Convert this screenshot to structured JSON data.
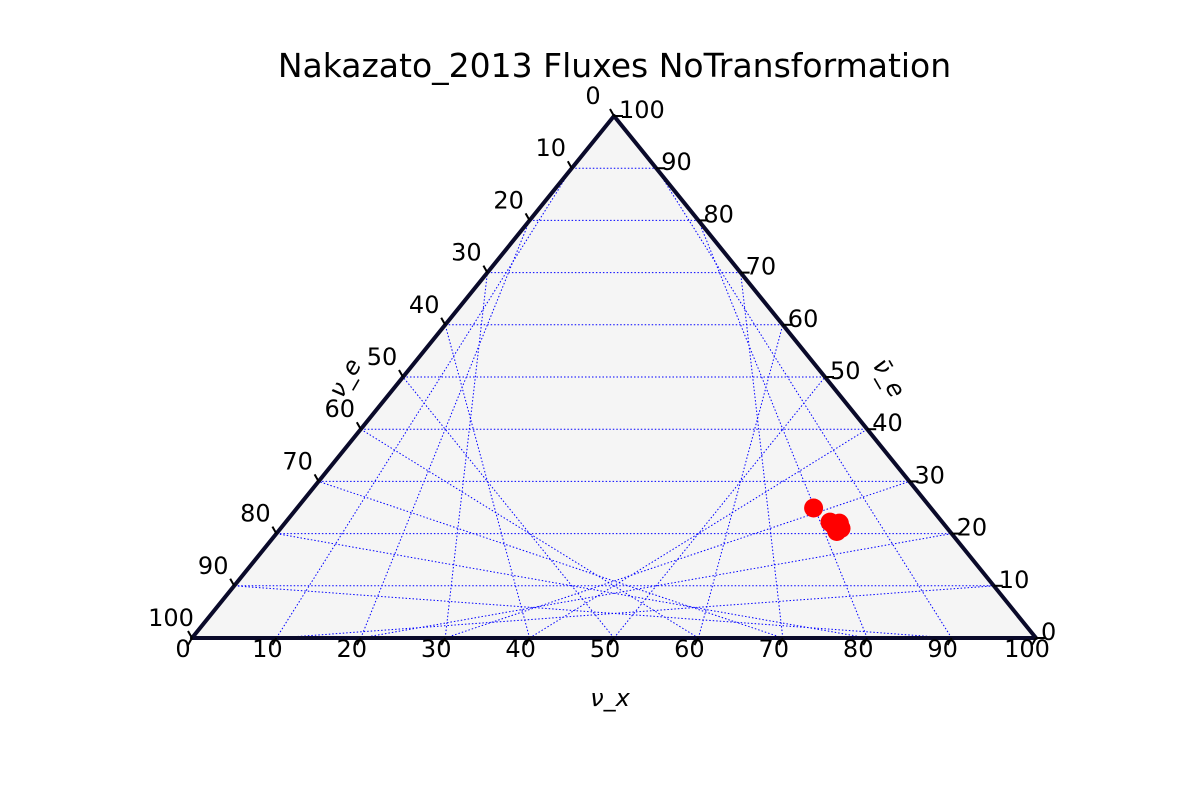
{
  "chart_data": {
    "type": "scatter",
    "subtype": "ternary",
    "title": "Nakazato_2013 Fluxes NoTransformation",
    "axes": {
      "bottom": {
        "label": "ν_x",
        "ticks": [
          "0",
          "10",
          "20",
          "30",
          "40",
          "50",
          "60",
          "70",
          "80",
          "90",
          "100"
        ]
      },
      "right": {
        "label": "ν̄_e",
        "ticks": [
          "0",
          "10",
          "20",
          "30",
          "40",
          "50",
          "60",
          "70",
          "80",
          "90",
          "100"
        ]
      },
      "left": {
        "label": "ν_e",
        "ticks": [
          "0",
          "10",
          "20",
          "30",
          "40",
          "50",
          "60",
          "70",
          "80",
          "90",
          "100"
        ]
      }
    },
    "scale": [
      0,
      100
    ],
    "grid": true,
    "colors": {
      "points": "#ff0000",
      "grid": "#0000ff",
      "frame": "#0a0a2a",
      "background": "#f5f5f5"
    },
    "points": [
      {
        "nu_x": 61.2,
        "nu_e_bar": 24.9,
        "nu_e": 13.9
      },
      {
        "nu_x": 64.5,
        "nu_e_bar": 22.2,
        "nu_e": 13.3
      },
      {
        "nu_x": 65.0,
        "nu_e_bar": 21.8,
        "nu_e": 13.2
      },
      {
        "nu_x": 65.6,
        "nu_e_bar": 21.2,
        "nu_e": 13.2
      },
      {
        "nu_x": 66.2,
        "nu_e_bar": 20.4,
        "nu_e": 13.4
      },
      {
        "nu_x": 65.7,
        "nu_e_bar": 22.0,
        "nu_e": 12.3
      },
      {
        "nu_x": 66.0,
        "nu_e_bar": 21.4,
        "nu_e": 12.6
      },
      {
        "nu_x": 66.4,
        "nu_e_bar": 21.0,
        "nu_e": 12.6
      }
    ]
  }
}
